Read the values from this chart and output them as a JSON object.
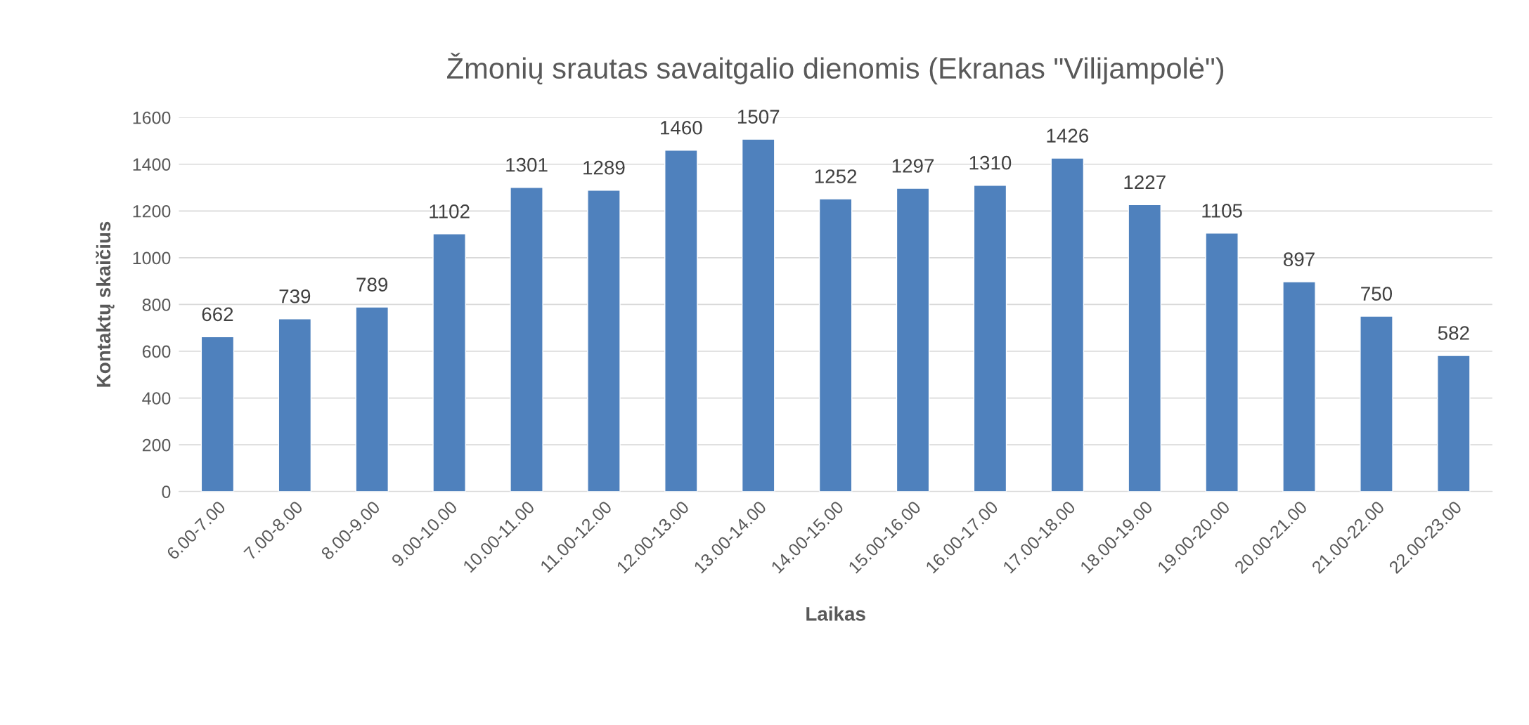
{
  "chart_data": {
    "type": "bar",
    "title": "Žmonių srautas savaitgalio dienomis (Ekranas \"Vilijampolė\")",
    "xlabel": "Laikas",
    "ylabel": "Kontaktų skaičius",
    "categories": [
      "6.00-7.00",
      "7.00-8.00",
      "8.00-9.00",
      "9.00-10.00",
      "10.00-11.00",
      "11.00-12.00",
      "12.00-13.00",
      "13.00-14.00",
      "14.00-15.00",
      "15.00-16.00",
      "16.00-17.00",
      "17.00-18.00",
      "18.00-19.00",
      "19.00-20.00",
      "20.00-21.00",
      "21.00-22.00",
      "22.00-23.00"
    ],
    "values": [
      662,
      739,
      789,
      1102,
      1301,
      1289,
      1460,
      1507,
      1252,
      1297,
      1310,
      1426,
      1227,
      1105,
      897,
      750,
      582
    ],
    "color": "#4f81bd",
    "ylim": [
      0,
      1600
    ],
    "yticks": [
      0,
      200,
      400,
      600,
      800,
      1000,
      1200,
      1400,
      1600
    ],
    "grid": "y",
    "data_labels": true,
    "legend": false
  }
}
